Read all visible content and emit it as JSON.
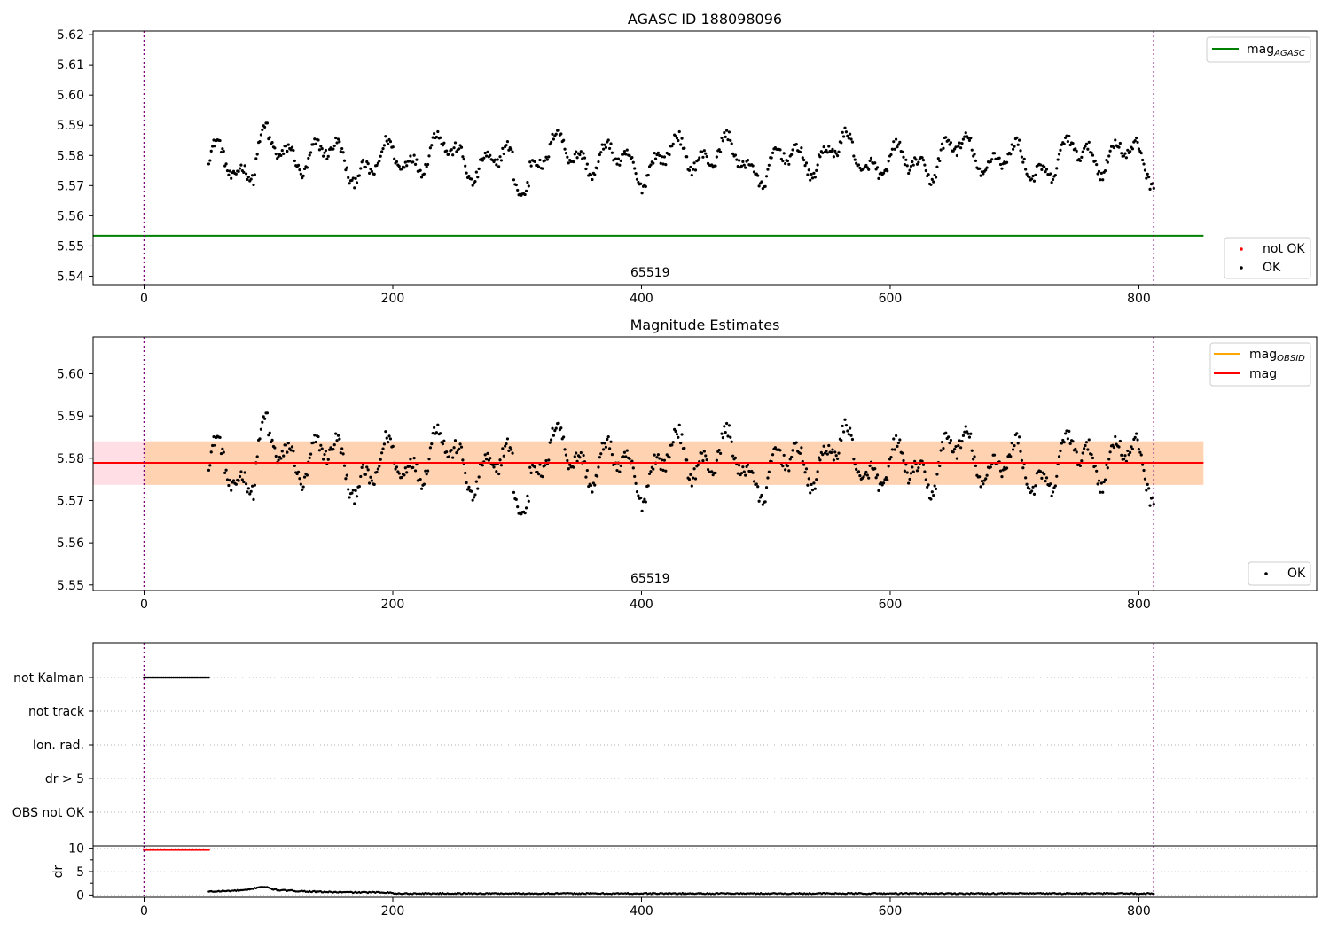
{
  "chart_data": [
    {
      "type": "scatter",
      "title": "AGASC ID 188098096",
      "center_label": "65519",
      "xlim": [
        -41,
        943
      ],
      "ylim": [
        5.5372,
        5.6212
      ],
      "x_ticks": [
        0,
        200,
        400,
        600,
        800
      ],
      "y_ticks": [
        5.54,
        5.55,
        5.56,
        5.57,
        5.58,
        5.59,
        5.6,
        5.61,
        5.62
      ],
      "vlines": [
        0,
        812
      ],
      "mag_agasc": 5.5534,
      "line_x_range": [
        -41,
        852
      ],
      "series": [
        {
          "name": "not OK",
          "color": "#ff0000",
          "count": 0
        },
        {
          "name": "OK",
          "color": "#000000",
          "x_range": [
            52,
            812
          ],
          "n_points": 760
        }
      ],
      "legends": {
        "lines": [
          {
            "name_main": "mag",
            "name_sub": "AGASC",
            "color": "#008000"
          }
        ],
        "points": [
          {
            "name": "not OK",
            "color": "#ff0000"
          },
          {
            "name": "OK",
            "color": "#000000"
          }
        ]
      }
    },
    {
      "type": "scatter",
      "title": "Magnitude Estimates",
      "center_label": "65519",
      "xlim": [
        -41,
        943
      ],
      "ylim": [
        5.5487,
        5.6087
      ],
      "x_ticks": [
        0,
        200,
        400,
        600,
        800
      ],
      "y_ticks": [
        5.55,
        5.56,
        5.57,
        5.58,
        5.59,
        5.6
      ],
      "vlines": [
        0,
        812
      ],
      "mag": 5.5789,
      "mag_obsid": 5.5789,
      "band_outer": [
        5.5737,
        5.584
      ],
      "band_inner": [
        5.5737,
        5.584
      ],
      "band_x_range": [
        -41,
        852
      ],
      "series": [
        {
          "name": "OK",
          "color": "#000000",
          "x_range": [
            52,
            812
          ],
          "n_points": 760
        }
      ],
      "legends": {
        "lines": [
          {
            "name_main": "mag",
            "name_sub": "OBSID",
            "color": "#ffa500"
          },
          {
            "name_main": "mag",
            "name_sub": "",
            "color": "#ff0000"
          }
        ],
        "points": [
          {
            "name": "OK",
            "color": "#000000"
          }
        ]
      }
    },
    {
      "type": "scatter",
      "title": "",
      "xlim": [
        -41,
        943
      ],
      "categories": [
        "not Kalman",
        "not track",
        "Ion. rad.",
        "dr > 5",
        "OBS not OK"
      ],
      "flag_points": [
        {
          "category": "not Kalman",
          "x_range": [
            0,
            52
          ],
          "color": "#000000"
        }
      ],
      "vlines": [
        0,
        812
      ]
    },
    {
      "type": "scatter",
      "title": "",
      "ylabel": "dr",
      "xlim": [
        -41,
        943
      ],
      "ylim": [
        -0.5,
        10.5
      ],
      "x_ticks": [
        0,
        200,
        400,
        600,
        800
      ],
      "y_ticks": [
        0,
        5,
        10
      ],
      "red_points": {
        "x_range": [
          0,
          52
        ],
        "y": 9.7,
        "color": "#ff0000"
      },
      "series": [
        {
          "name": "dr",
          "color": "#000000",
          "x_range": [
            52,
            812
          ],
          "typical": 0.3,
          "bump_x": 95,
          "bump_y": 1.2
        }
      ],
      "vlines": [
        0,
        812
      ]
    }
  ]
}
